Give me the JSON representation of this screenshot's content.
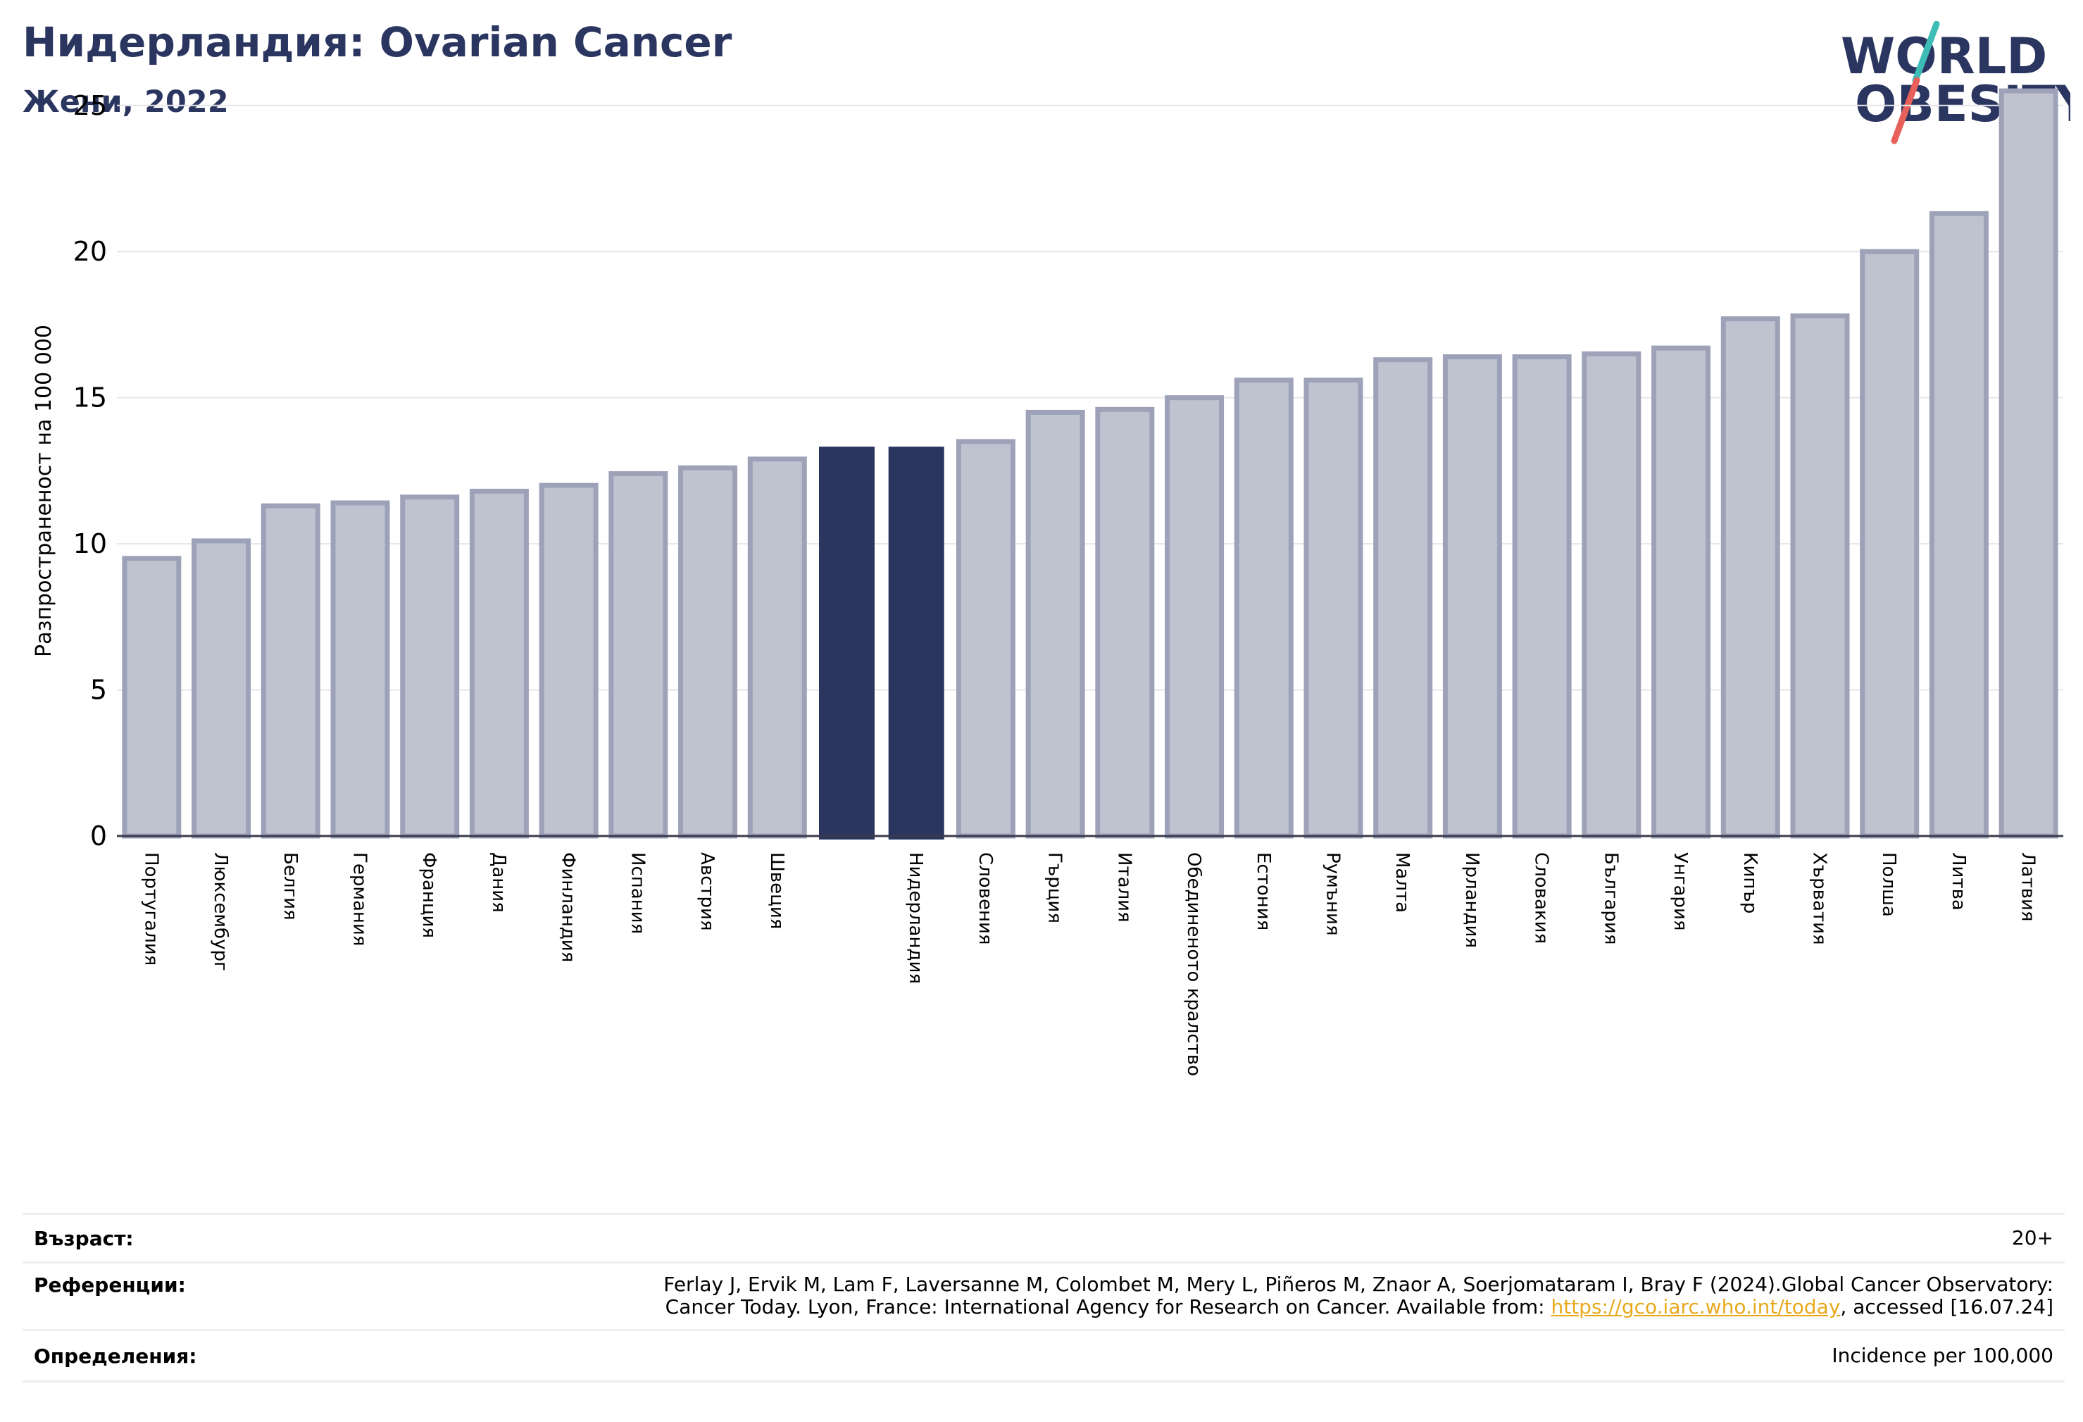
{
  "header": {
    "title": "Нидерландия: Ovarian Cancer",
    "subtitle": "Жени, 2022"
  },
  "logo": {
    "line1": "WORLD",
    "line2": "OBESITY",
    "colors": {
      "text": "#2a3560",
      "slash_top": "#3dbdb5",
      "slash_bottom": "#e8605a"
    }
  },
  "chart_data": {
    "type": "bar",
    "ylabel": "Разпространеност  на 100 000",
    "xlabel": "",
    "ylim": [
      0,
      26.2
    ],
    "yticks": [
      0,
      5,
      10,
      15,
      20,
      25
    ],
    "grid": true,
    "categories": [
      "Португалия",
      "Люксембург",
      "Белгия",
      "Германия",
      "Франция",
      "Дания",
      "Финландия",
      "Испания",
      "Австрия",
      "Швеция",
      "",
      "Нидерландия",
      "Словения",
      "Гърция",
      "Италия",
      "Обединеното кралство",
      "Естония",
      "Румъния",
      "Малта",
      "Ирландия",
      "Словакия",
      "България",
      "Унгария",
      "Кипър",
      "Хърватия",
      "Полша",
      "Литва",
      "Латвия"
    ],
    "values": [
      9.5,
      10.1,
      11.3,
      11.4,
      11.6,
      11.8,
      12.0,
      12.4,
      12.6,
      12.9,
      13.3,
      13.3,
      13.5,
      14.5,
      14.6,
      15.0,
      15.6,
      15.6,
      16.3,
      16.4,
      16.4,
      16.5,
      16.7,
      17.7,
      17.8,
      20.0,
      21.3,
      25.5
    ],
    "highlight": [
      10,
      11
    ],
    "colors": {
      "bar": "#bfc2cf",
      "bar_edge": "#9da2b9",
      "highlight": "#2a3560"
    }
  },
  "info": {
    "age_label": "Възраст:",
    "age_value": "20+",
    "refs_label": "Референции:",
    "refs_line1": "Ferlay J, Ervik M, Lam F, Laversanne M, Colombet M, Mery L, Piñeros M, Znaor A, Soerjomataram I, Bray F (2024).Global Cancer Observatory:",
    "refs_line2_pre": "Cancer Today. Lyon, France: International Agency for Research on Cancer. Available from: ",
    "refs_link": "https://gco.iarc.who.int/today",
    "refs_line2_post": ", accessed [16.07.24]",
    "defs_label": "Определения:",
    "defs_value": "Incidence per 100,000"
  }
}
